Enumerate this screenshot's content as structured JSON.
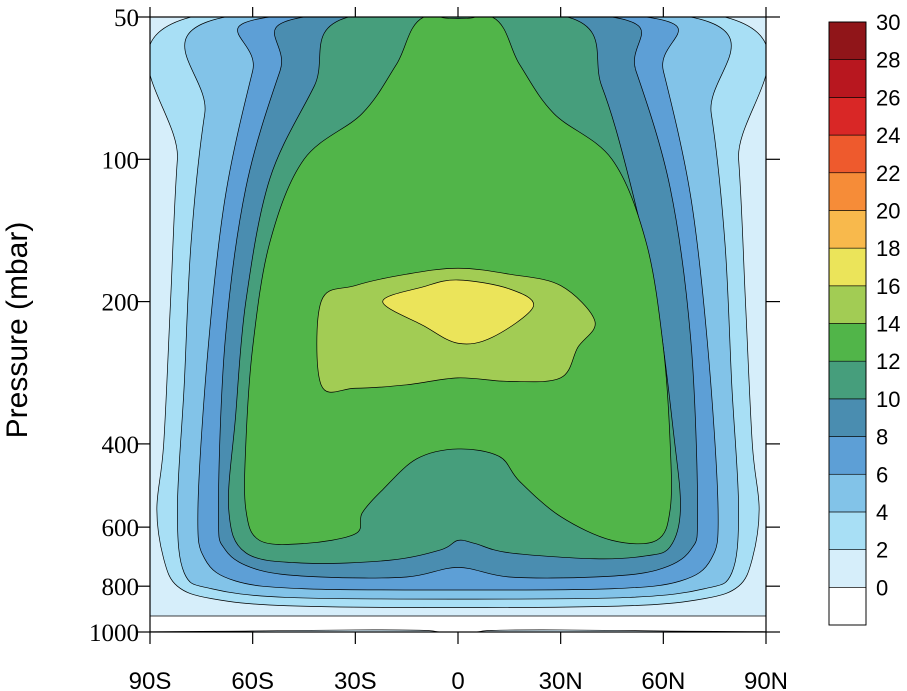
{
  "chart_data": {
    "type": "contour",
    "title": "",
    "xlabel": "",
    "ylabel": "Pressure (mbar)",
    "x": {
      "range": [
        -90,
        90
      ],
      "ticks": [
        -90,
        -60,
        -30,
        0,
        30,
        60,
        90
      ],
      "tick_labels": [
        "90S",
        "60S",
        "30S",
        "0",
        "30N",
        "60N",
        "90N"
      ]
    },
    "y": {
      "scale": "log",
      "inverted": true,
      "range": [
        1000,
        50
      ],
      "ticks": [
        50,
        100,
        200,
        400,
        600,
        800,
        1000
      ],
      "tick_labels": [
        "50",
        "100",
        "200",
        "400",
        "600",
        "800",
        "1000"
      ]
    },
    "contour_levels": [
      0,
      2,
      4,
      6,
      8,
      10,
      12,
      14,
      16,
      18,
      20,
      22,
      24,
      26,
      28,
      30
    ],
    "colorbar": {
      "labels": [
        "0",
        "2",
        "4",
        "6",
        "8",
        "10",
        "12",
        "14",
        "16",
        "18",
        "20",
        "22",
        "24",
        "26",
        "28",
        "30"
      ],
      "colors": [
        "#ffffff",
        "#d6eefa",
        "#a8dff5",
        "#82c3e8",
        "#5d9fd6",
        "#4a8db0",
        "#469e7c",
        "#51b549",
        "#a2cc54",
        "#ebe45a",
        "#f8b94c",
        "#f68c38",
        "#ee5a2d",
        "#d92726",
        "#b8171f",
        "#901519"
      ]
    },
    "regions": [
      {
        "level": 0,
        "fill": "#d6eefa",
        "points": [
          [
            -90,
            50
          ],
          [
            -90,
            925
          ],
          [
            90,
            925
          ],
          [
            90,
            50
          ]
        ]
      },
      {
        "level": 0,
        "fill": "#d6eefa",
        "points": [
          [
            -85,
            1000
          ],
          [
            -60,
            995
          ],
          [
            -30,
            990
          ],
          [
            -10,
            992
          ],
          [
            -5,
            1000
          ],
          [
            5,
            1000
          ],
          [
            10,
            992
          ],
          [
            30,
            990
          ],
          [
            60,
            995
          ],
          [
            85,
            1000
          ]
        ]
      },
      {
        "level": 2,
        "fill": "#a8dff5",
        "points": [
          [
            -78,
            50
          ],
          [
            -82,
            100
          ],
          [
            -84,
            200
          ],
          [
            -86,
            400
          ],
          [
            -88,
            550
          ],
          [
            -86,
            700
          ],
          [
            -82,
            800
          ],
          [
            -72,
            850
          ],
          [
            -50,
            880
          ],
          [
            0,
            888
          ],
          [
            50,
            880
          ],
          [
            72,
            850
          ],
          [
            82,
            800
          ],
          [
            86,
            700
          ],
          [
            88,
            550
          ],
          [
            86,
            400
          ],
          [
            84,
            200
          ],
          [
            82,
            100
          ],
          [
            78,
            50
          ]
        ]
      },
      {
        "level": 4,
        "fill": "#82c3e8",
        "points": [
          [
            -68,
            50
          ],
          [
            -74,
            80
          ],
          [
            -78,
            150
          ],
          [
            -80,
            300
          ],
          [
            -82,
            550
          ],
          [
            -80,
            750
          ],
          [
            -72,
            810
          ],
          [
            -50,
            845
          ],
          [
            0,
            852
          ],
          [
            50,
            845
          ],
          [
            72,
            810
          ],
          [
            80,
            750
          ],
          [
            82,
            550
          ],
          [
            80,
            300
          ],
          [
            78,
            150
          ],
          [
            74,
            80
          ],
          [
            68,
            50
          ]
        ]
      },
      {
        "level": 6,
        "fill": "#5d9fd6",
        "points": [
          [
            -55,
            50
          ],
          [
            -60,
            65
          ],
          [
            -68,
            120
          ],
          [
            -73,
            250
          ],
          [
            -76,
            550
          ],
          [
            -74,
            700
          ],
          [
            -65,
            780
          ],
          [
            -45,
            810
          ],
          [
            0,
            815
          ],
          [
            45,
            810
          ],
          [
            65,
            780
          ],
          [
            74,
            700
          ],
          [
            76,
            550
          ],
          [
            73,
            250
          ],
          [
            68,
            120
          ],
          [
            60,
            65
          ],
          [
            55,
            50
          ]
        ]
      },
      {
        "level": 8,
        "fill": "#4a8db0",
        "points": [
          [
            -45,
            50
          ],
          [
            -52,
            65
          ],
          [
            -62,
            115
          ],
          [
            -68,
            240
          ],
          [
            -70,
            550
          ],
          [
            -68,
            670
          ],
          [
            -58,
            740
          ],
          [
            -40,
            765
          ],
          [
            -15,
            765
          ],
          [
            0,
            730
          ],
          [
            15,
            765
          ],
          [
            40,
            765
          ],
          [
            58,
            740
          ],
          [
            68,
            670
          ],
          [
            70,
            550
          ],
          [
            68,
            240
          ],
          [
            62,
            115
          ],
          [
            52,
            65
          ],
          [
            45,
            50
          ]
        ]
      },
      {
        "level": 10,
        "fill": "#469e7c",
        "points": [
          [
            -32,
            50
          ],
          [
            -42,
            70
          ],
          [
            -55,
            110
          ],
          [
            -62,
            200
          ],
          [
            -65,
            350
          ],
          [
            -67,
            550
          ],
          [
            -62,
            680
          ],
          [
            -45,
            715
          ],
          [
            -20,
            705
          ],
          [
            -5,
            670
          ],
          [
            0,
            640
          ],
          [
            5,
            650
          ],
          [
            15,
            680
          ],
          [
            40,
            700
          ],
          [
            55,
            690
          ],
          [
            62,
            660
          ],
          [
            65,
            550
          ],
          [
            63,
            380
          ],
          [
            58,
            200
          ],
          [
            50,
            110
          ],
          [
            42,
            70
          ],
          [
            32,
            50
          ]
        ]
      },
      {
        "level": 12,
        "fill": "#51b549",
        "points": [
          [
            -10,
            50
          ],
          [
            -18,
            63
          ],
          [
            -28,
            80
          ],
          [
            -45,
            100
          ],
          [
            -55,
            150
          ],
          [
            -60,
            250
          ],
          [
            -62,
            400
          ],
          [
            -62,
            550
          ],
          [
            -58,
            640
          ],
          [
            -45,
            650
          ],
          [
            -30,
            620
          ],
          [
            -28,
            560
          ],
          [
            -22,
            500
          ],
          [
            -12,
            430
          ],
          [
            0,
            410
          ],
          [
            12,
            425
          ],
          [
            18,
            480
          ],
          [
            30,
            570
          ],
          [
            45,
            640
          ],
          [
            58,
            640
          ],
          [
            62,
            550
          ],
          [
            62,
            400
          ],
          [
            60,
            250
          ],
          [
            55,
            150
          ],
          [
            45,
            100
          ],
          [
            28,
            80
          ],
          [
            18,
            63
          ],
          [
            10,
            50
          ]
        ]
      },
      {
        "level": 12,
        "fill": "#469e7c",
        "points": [
          [
            -5,
            50
          ],
          [
            0,
            47
          ],
          [
            5,
            50
          ]
        ]
      },
      {
        "level": 14,
        "fill": "#a2cc54",
        "points": [
          [
            -40,
            200
          ],
          [
            -40,
            300
          ],
          [
            -30,
            305
          ],
          [
            -15,
            300
          ],
          [
            0,
            290
          ],
          [
            15,
            295
          ],
          [
            30,
            290
          ],
          [
            35,
            250
          ],
          [
            40,
            220
          ],
          [
            30,
            185
          ],
          [
            15,
            175
          ],
          [
            0,
            170
          ],
          [
            -15,
            175
          ],
          [
            -30,
            185
          ]
        ]
      },
      {
        "level": 16,
        "fill": "#ebe45a",
        "points": [
          [
            -22,
            200
          ],
          [
            -10,
            225
          ],
          [
            0,
            245
          ],
          [
            10,
            238
          ],
          [
            22,
            205
          ],
          [
            15,
            188
          ],
          [
            0,
            180
          ],
          [
            -10,
            186
          ]
        ]
      }
    ]
  }
}
